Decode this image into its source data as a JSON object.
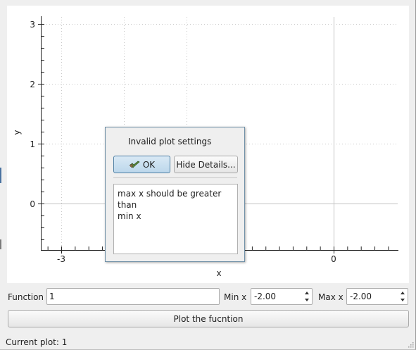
{
  "plot": {
    "x_label": "x",
    "y_label": "y",
    "x_ticks": [
      "-3",
      "0"
    ],
    "y_ticks": [
      "3",
      "2",
      "1",
      "0"
    ]
  },
  "dialog": {
    "message": "Invalid plot settings",
    "ok_label": "OK",
    "details_button_label": "Hide Details...",
    "details_text": "max x should be greater than\nmin x"
  },
  "controls": {
    "function_label": "Function",
    "function_value": "1",
    "min_x_label": "Min x",
    "min_x_value": "-2.00",
    "max_x_label": "Max x",
    "max_x_value": "-2.00",
    "plot_button_label": "Plot the fucntion"
  },
  "status": {
    "text": "Current plot: 1"
  },
  "colors": {
    "ok_button_accent": "#4e7fa3",
    "dialog_border": "#6f8fa6",
    "grid": "#c8c8c8"
  },
  "icons": {
    "ok": "ok-checkmark-hand-icon",
    "spin_up": "spin-up-arrow-icon",
    "spin_down": "spin-down-arrow-icon"
  }
}
